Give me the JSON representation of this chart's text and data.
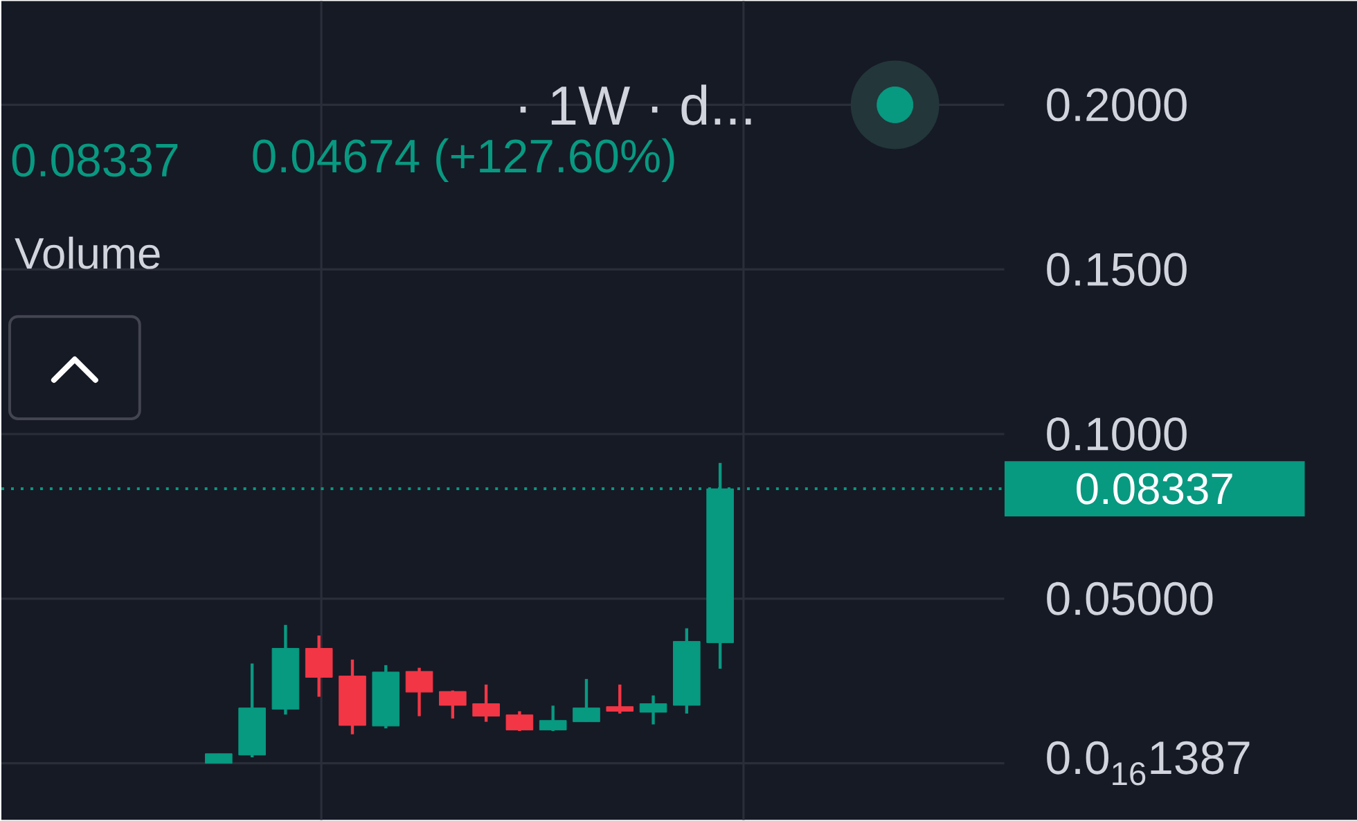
{
  "chart_data": {
    "type": "candlestick",
    "title": "· 1W · d...",
    "annotations": [
      "0.08337",
      "0.04674 (+127.60%)",
      "Volume"
    ],
    "categories": [
      null,
      null,
      null,
      null,
      null,
      null,
      null,
      null,
      null,
      null,
      null,
      null,
      null,
      null,
      null,
      null,
      null,
      null,
      null,
      null,
      null,
      null,
      null,
      null,
      null,
      null,
      null,
      null,
      null,
      null
    ],
    "ohlc": [
      null,
      null,
      null,
      null,
      null,
      null,
      [
        0.0,
        0.0029,
        0.0,
        0.0029
      ],
      [
        0.0025,
        0.0303,
        0.0018,
        0.0168
      ],
      [
        0.0164,
        0.042,
        0.0148,
        0.0349
      ],
      [
        0.0349,
        0.0388,
        0.0202,
        0.0261
      ],
      [
        0.0265,
        0.0315,
        0.0088,
        0.0115
      ],
      [
        0.0113,
        0.0298,
        0.0106,
        0.0277
      ],
      [
        0.0279,
        0.029,
        0.0143,
        0.0216
      ],
      [
        0.0218,
        0.0221,
        0.0136,
        0.0176
      ],
      [
        0.0181,
        0.0239,
        0.0126,
        0.0143
      ],
      [
        0.0147,
        0.0158,
        0.0098,
        0.0101
      ],
      [
        0.0101,
        0.0175,
        0.0098,
        0.013
      ],
      [
        0.0126,
        0.0256,
        0.0126,
        0.0168
      ],
      [
        0.0172,
        0.0239,
        0.0151,
        0.0158
      ],
      [
        0.0155,
        0.0206,
        0.0118,
        0.0181
      ],
      [
        0.0176,
        0.041,
        0.0151,
        0.037
      ],
      [
        0.03663,
        0.0912,
        0.0287,
        0.08337
      ],
      null,
      null,
      null,
      null,
      null,
      null,
      null,
      null
    ],
    "colors": [
      null,
      null,
      null,
      null,
      null,
      null,
      "#089981",
      "#089981",
      "#089981",
      "#f23645",
      "#f23645",
      "#089981",
      "#f23645",
      "#f23645",
      "#f23645",
      "#f23645",
      "#089981",
      "#089981",
      "#f23645",
      "#089981",
      "#089981",
      "#089981",
      null,
      null,
      null,
      null,
      null,
      null,
      null,
      null
    ],
    "ylim": [
      -0.0172,
      0.2315
    ],
    "yticks": [
      {
        "value": 0,
        "label": "0.0$_{16}$1387"
      },
      {
        "value": 0.05,
        "label": "0.05000"
      },
      {
        "value": 0.1,
        "label": "0.1000"
      },
      {
        "value": 0.15,
        "label": "0.1500"
      },
      {
        "value": 0.2,
        "label": "0.2000"
      }
    ],
    "tick_labels": "y",
    "grid": true,
    "ref_lines": [
      {
        "axis": "y",
        "value": 0.08337,
        "label": "0.08337",
        "color": "#089981",
        "line_style": "dotted"
      }
    ]
  }
}
